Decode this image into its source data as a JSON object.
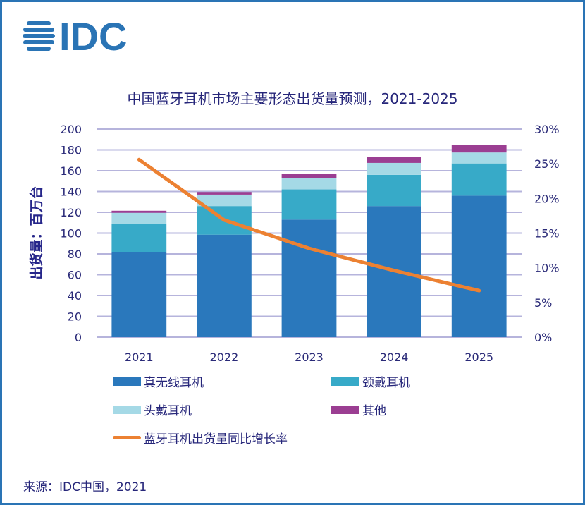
{
  "logo": {
    "text": "IDC",
    "icon": "idc-globe-icon"
  },
  "source": "来源：IDC中国，2021",
  "chart_data": {
    "type": "bar",
    "stacked": true,
    "title": "中国蓝牙耳机市场主要形态出货量预测，2021-2025",
    "xlabel": "",
    "ylabel": "出货量：百万台",
    "y2label": "",
    "categories": [
      "2021",
      "2022",
      "2023",
      "2024",
      "2025"
    ],
    "ylim": [
      0,
      200
    ],
    "yticks": [
      0,
      20,
      40,
      60,
      80,
      100,
      120,
      140,
      160,
      180,
      200
    ],
    "y2lim": [
      0,
      30
    ],
    "y2ticks": [
      "0%",
      "5%",
      "10%",
      "15%",
      "20%",
      "25%",
      "30%"
    ],
    "grid": true,
    "legend_position": "bottom",
    "series": [
      {
        "name": "真无线耳机",
        "color": "#2a78bc",
        "values": [
          82,
          98.5,
          113,
          126,
          136
        ]
      },
      {
        "name": "颈戴耳机",
        "color": "#37aac8",
        "values": [
          26.5,
          27.5,
          29,
          30,
          31
        ]
      },
      {
        "name": "头戴耳机",
        "color": "#a5d9e6",
        "values": [
          11,
          11,
          11,
          11.5,
          10.5
        ]
      },
      {
        "name": "其他",
        "color": "#9b3e92",
        "values": [
          2,
          2.5,
          4,
          5.5,
          7
        ]
      }
    ],
    "line_series": {
      "name": "蓝牙耳机出货量同比增长率",
      "color": "#ec8132",
      "axis": "right",
      "unit": "%",
      "values": [
        25.6,
        16.9,
        12.8,
        9.6,
        6.7
      ]
    }
  },
  "legend": [
    {
      "label": "真无线耳机",
      "color": "#2a78bc",
      "kind": "bar"
    },
    {
      "label": "颈戴耳机",
      "color": "#37aac8",
      "kind": "bar"
    },
    {
      "label": "头戴耳机",
      "color": "#a5d9e6",
      "kind": "bar"
    },
    {
      "label": "其他",
      "color": "#9b3e92",
      "kind": "bar"
    },
    {
      "label": "蓝牙耳机出货量同比增长率",
      "color": "#ec8132",
      "kind": "line"
    }
  ],
  "colors": {
    "border": "#2a74b5",
    "text": "#26267a",
    "grid": "#b6b4dc"
  }
}
